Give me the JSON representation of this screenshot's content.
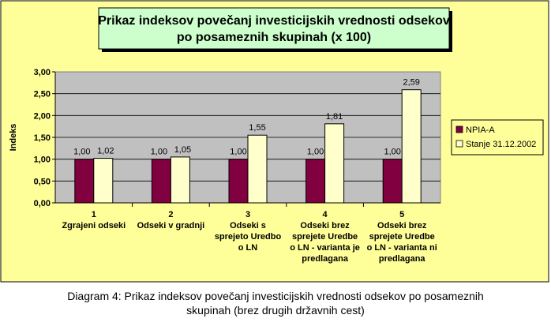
{
  "chart_data": {
    "type": "bar",
    "title_lines": [
      "Prikaz indeksov povečanj investicijskih vrednosti odsekov",
      "po posameznih skupinah (x 100)"
    ],
    "ylabel": "Indeks",
    "xlabel": "",
    "ylim": [
      0,
      3
    ],
    "yticks": [
      "0,00",
      "0,50",
      "1,00",
      "1,50",
      "2,00",
      "2,50",
      "3,00"
    ],
    "ytick_values": [
      0,
      0.5,
      1,
      1.5,
      2,
      2.5,
      3
    ],
    "grid": true,
    "legend_position": "right",
    "categories": [
      [
        "1",
        "Zgrajeni odseki"
      ],
      [
        "2",
        "Odseki v gradnji"
      ],
      [
        "3",
        "Odseki s",
        "sprejeto Uredbo",
        "o LN"
      ],
      [
        "4",
        "Odseki brez",
        "sprejete Uredbe",
        "o LN - varianta je",
        "predlagana"
      ],
      [
        "5",
        "Odseki brez",
        "sprejete Uredbe",
        "o LN - varianta ni",
        "predlagana"
      ]
    ],
    "series": [
      {
        "name": "NPIA-A",
        "values": [
          1.0,
          1.0,
          1.0,
          1.0,
          1.0
        ],
        "labels": [
          "1,00",
          "1,00",
          "1,00",
          "1,00",
          "1,00"
        ],
        "color": "#800040"
      },
      {
        "name": "Stanje 31.12.2002",
        "values": [
          1.02,
          1.05,
          1.55,
          1.81,
          2.59
        ],
        "labels": [
          "1,02",
          "1,05",
          "1,55",
          "1,81",
          "2,59"
        ],
        "color": "#ffffcc"
      }
    ]
  },
  "caption": {
    "line1": "Diagram 4: Prikaz indeksov povečanj investicijskih vrednosti odsekov po posameznih",
    "line2": "skupinah (brez drugih državnih cest)"
  },
  "colors": {
    "background": "#ffff99",
    "title_box": "#ccffcc",
    "plot_area": "#c0c0c0"
  }
}
